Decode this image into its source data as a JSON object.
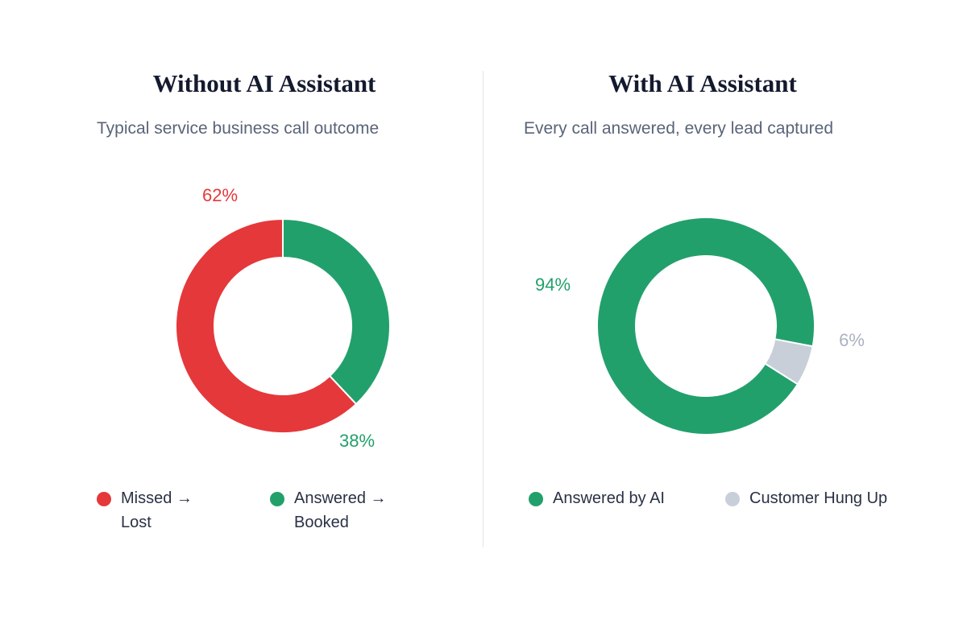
{
  "chart_data": [
    {
      "type": "pie",
      "title": "Without AI Assistant",
      "subtitle": "Typical service business call outcome",
      "series": [
        {
          "name": "Missed → Lost",
          "value": 62,
          "label": "62%",
          "color": "#e5383b"
        },
        {
          "name": "Answered → Booked",
          "value": 38,
          "label": "38%",
          "color": "#22a06b"
        }
      ],
      "legend_placement": "bottom"
    },
    {
      "type": "pie",
      "title": "With AI Assistant",
      "subtitle": "Every call answered, every lead captured",
      "series": [
        {
          "name": "Answered by AI",
          "value": 94,
          "label": "94%",
          "color": "#22a06b"
        },
        {
          "name": "Customer Hung Up",
          "value": 6,
          "label": "6%",
          "color": "#c9cfd9"
        }
      ],
      "legend_placement": "bottom"
    }
  ],
  "colors": {
    "title": "#141a2e",
    "subtitle": "#5a6478",
    "legend_text": "#2a3145",
    "divider": "#e3e6ea",
    "label_gray": "#aab2c0"
  }
}
